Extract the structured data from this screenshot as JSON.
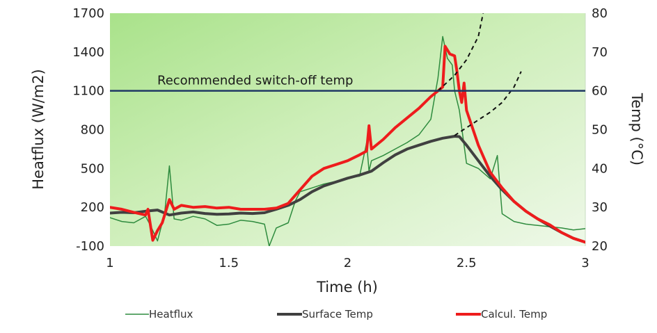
{
  "chart_data": {
    "type": "line",
    "xlabel": "Time (h)",
    "ylabel_left": "Heatflux (W/m2)",
    "ylabel_right": "Temp (°C)",
    "xlim": [
      1,
      3
    ],
    "ylim_left": [
      -100,
      1700
    ],
    "ylim_right": [
      20,
      80
    ],
    "x_ticks": [
      "1",
      "1.5",
      "2",
      "2.5",
      "3"
    ],
    "y_ticks_left": [
      "-100",
      "200",
      "500",
      "800",
      "1100",
      "1400",
      "1700"
    ],
    "y_ticks_right": [
      "20",
      "30",
      "40",
      "50",
      "60",
      "70",
      "80"
    ],
    "grid": false,
    "background": "green-gradient",
    "legend_position": "bottom",
    "annotation": {
      "text": "Recommended switch-off temp",
      "axis": "right",
      "y": 60,
      "color": "#1f3864"
    },
    "series": [
      {
        "name": "Heatflux",
        "axis": "left",
        "color": "#2e8b3e",
        "width": 1.5,
        "x": [
          1.0,
          1.05,
          1.1,
          1.15,
          1.17,
          1.2,
          1.23,
          1.25,
          1.27,
          1.3,
          1.35,
          1.4,
          1.45,
          1.5,
          1.55,
          1.6,
          1.65,
          1.67,
          1.7,
          1.75,
          1.78,
          1.8,
          1.85,
          1.9,
          1.95,
          2.0,
          2.05,
          2.08,
          2.09,
          2.1,
          2.15,
          2.2,
          2.25,
          2.3,
          2.35,
          2.38,
          2.4,
          2.42,
          2.44,
          2.45,
          2.47,
          2.5,
          2.55,
          2.6,
          2.63,
          2.65,
          2.7,
          2.75,
          2.8,
          2.85,
          2.9,
          2.95,
          3.0
        ],
        "y": [
          120,
          90,
          80,
          130,
          60,
          -60,
          150,
          520,
          110,
          100,
          130,
          110,
          60,
          70,
          100,
          90,
          70,
          -100,
          40,
          80,
          250,
          320,
          350,
          380,
          400,
          430,
          440,
          700,
          480,
          560,
          600,
          650,
          700,
          760,
          880,
          1200,
          1520,
          1350,
          1300,
          1100,
          950,
          540,
          500,
          420,
          600,
          150,
          90,
          70,
          60,
          50,
          40,
          25,
          35
        ]
      },
      {
        "name": "Surface Temp",
        "axis": "right",
        "color": "#404040",
        "width": 4,
        "x": [
          1.0,
          1.05,
          1.1,
          1.15,
          1.2,
          1.25,
          1.3,
          1.35,
          1.4,
          1.45,
          1.5,
          1.55,
          1.6,
          1.65,
          1.7,
          1.75,
          1.8,
          1.85,
          1.9,
          1.95,
          2.0,
          2.05,
          2.1,
          2.15,
          2.2,
          2.25,
          2.3,
          2.35,
          2.4,
          2.45,
          2.47,
          2.5,
          2.55,
          2.6,
          2.65,
          2.7,
          2.75,
          2.8,
          2.85,
          2.9,
          2.95,
          3.0
        ],
        "y": [
          28.5,
          28.7,
          28.6,
          29.0,
          29.3,
          28.0,
          28.5,
          28.8,
          28.4,
          28.2,
          28.3,
          28.5,
          28.4,
          28.6,
          29.5,
          30.5,
          32.0,
          34.0,
          35.5,
          36.5,
          37.5,
          38.3,
          39.3,
          41.5,
          43.5,
          45.0,
          46.0,
          47.0,
          47.8,
          48.3,
          48.2,
          46.0,
          42.0,
          38.0,
          34.5,
          31.5,
          29.0,
          27.0,
          25.2,
          23.5,
          22.0,
          21.0
        ]
      },
      {
        "name": "Calcul. Temp",
        "axis": "right",
        "color": "#ee1c1c",
        "width": 4,
        "x": [
          1.0,
          1.05,
          1.1,
          1.15,
          1.16,
          1.18,
          1.2,
          1.22,
          1.25,
          1.27,
          1.3,
          1.35,
          1.4,
          1.45,
          1.5,
          1.55,
          1.6,
          1.65,
          1.7,
          1.75,
          1.8,
          1.85,
          1.9,
          1.95,
          2.0,
          2.05,
          2.08,
          2.09,
          2.1,
          2.15,
          2.2,
          2.25,
          2.3,
          2.35,
          2.38,
          2.4,
          2.41,
          2.43,
          2.45,
          2.46,
          2.47,
          2.48,
          2.49,
          2.5,
          2.55,
          2.6,
          2.65,
          2.7,
          2.75,
          2.8,
          2.85,
          2.9,
          2.95,
          3.0
        ],
        "y": [
          30.0,
          29.5,
          28.7,
          28.0,
          29.5,
          21.5,
          24.0,
          26.0,
          32.0,
          29.5,
          30.5,
          30.0,
          30.2,
          29.8,
          30.0,
          29.5,
          29.5,
          29.5,
          29.8,
          31.0,
          34.5,
          38.0,
          40.0,
          41.0,
          42.0,
          43.5,
          44.5,
          51.0,
          45.0,
          47.5,
          50.5,
          53.0,
          55.5,
          58.5,
          60.0,
          61.0,
          71.5,
          69.5,
          69.0,
          65.0,
          60.0,
          57.0,
          62.0,
          55.0,
          46.0,
          39.0,
          35.0,
          31.5,
          29.0,
          27.0,
          25.5,
          23.5,
          22.0,
          21.0
        ]
      }
    ],
    "extrapolations": [
      {
        "axis": "right",
        "style": "dashed",
        "color": "#111111",
        "x": [
          2.45,
          2.5,
          2.55,
          2.6,
          2.65,
          2.7,
          2.73
        ],
        "y": [
          48.5,
          50.5,
          52.5,
          54.5,
          57.0,
          61.0,
          65.0
        ]
      },
      {
        "axis": "right",
        "style": "dashed",
        "color": "#111111",
        "x": [
          2.38,
          2.45,
          2.5,
          2.55,
          2.57
        ],
        "y": [
          60.0,
          64.0,
          68.0,
          74.0,
          80.0
        ]
      }
    ]
  }
}
